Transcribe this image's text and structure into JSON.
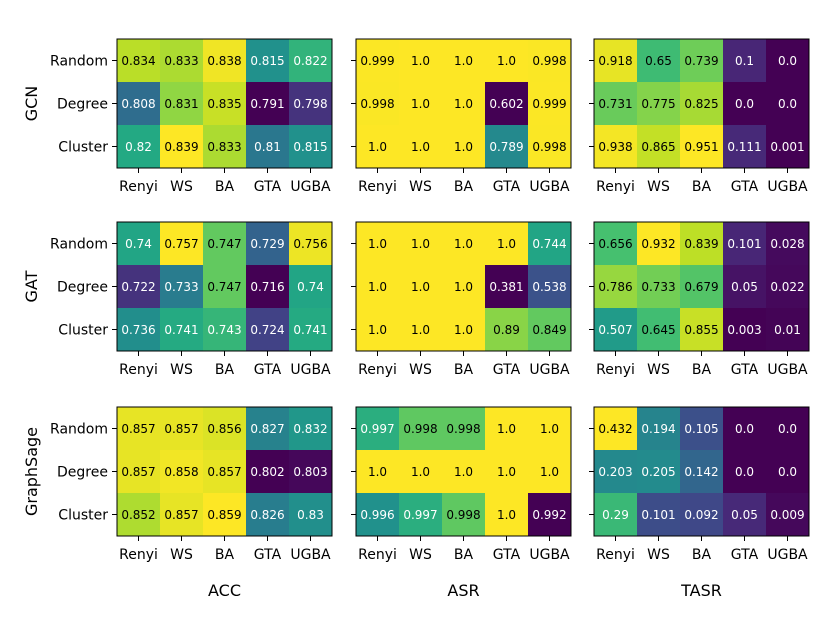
{
  "chart_data": {
    "type": "heatmap",
    "colormap": "viridis",
    "value_range": [
      0,
      1
    ],
    "row_titles": [
      "GCN",
      "GAT",
      "GraphSage"
    ],
    "col_titles": [
      "ACC",
      "ASR",
      "TASR"
    ],
    "x_ticks": [
      "Renyi",
      "WS",
      "BA",
      "GTA",
      "UGBA"
    ],
    "y_ticks": [
      "Random",
      "Degree",
      "Cluster"
    ],
    "panels": [
      {
        "model": "GCN",
        "metric": "ACC",
        "values": [
          [
            0.834,
            0.833,
            0.838,
            0.815,
            0.822
          ],
          [
            0.808,
            0.831,
            0.835,
            0.791,
            0.798
          ],
          [
            0.82,
            0.839,
            0.833,
            0.81,
            0.815
          ]
        ],
        "labels": [
          [
            "0.834",
            "0.833",
            "0.838",
            "0.815",
            "0.822"
          ],
          [
            "0.808",
            "0.831",
            "0.835",
            "0.791",
            "0.798"
          ],
          [
            "0.82",
            "0.839",
            "0.833",
            "0.81",
            "0.815"
          ]
        ]
      },
      {
        "model": "GCN",
        "metric": "ASR",
        "values": [
          [
            0.999,
            1.0,
            1.0,
            1.0,
            0.998
          ],
          [
            0.998,
            1.0,
            1.0,
            0.602,
            0.999
          ],
          [
            1.0,
            1.0,
            1.0,
            0.789,
            0.998
          ]
        ],
        "labels": [
          [
            "0.999",
            "1.0",
            "1.0",
            "1.0",
            "0.998"
          ],
          [
            "0.998",
            "1.0",
            "1.0",
            "0.602",
            "0.999"
          ],
          [
            "1.0",
            "1.0",
            "1.0",
            "0.789",
            "0.998"
          ]
        ]
      },
      {
        "model": "GCN",
        "metric": "TASR",
        "values": [
          [
            0.918,
            0.65,
            0.739,
            0.1,
            0.0
          ],
          [
            0.731,
            0.775,
            0.825,
            0.0,
            0.0
          ],
          [
            0.938,
            0.865,
            0.951,
            0.111,
            0.001
          ]
        ],
        "labels": [
          [
            "0.918",
            "0.65",
            "0.739",
            "0.1",
            "0.0"
          ],
          [
            "0.731",
            "0.775",
            "0.825",
            "0.0",
            "0.0"
          ],
          [
            "0.938",
            "0.865",
            "0.951",
            "0.111",
            "0.001"
          ]
        ]
      },
      {
        "model": "GAT",
        "metric": "ACC",
        "values": [
          [
            0.74,
            0.757,
            0.747,
            0.729,
            0.756
          ],
          [
            0.722,
            0.733,
            0.747,
            0.716,
            0.74
          ],
          [
            0.736,
            0.741,
            0.743,
            0.724,
            0.741
          ]
        ],
        "labels": [
          [
            "0.74",
            "0.757",
            "0.747",
            "0.729",
            "0.756"
          ],
          [
            "0.722",
            "0.733",
            "0.747",
            "0.716",
            "0.74"
          ],
          [
            "0.736",
            "0.741",
            "0.743",
            "0.724",
            "0.741"
          ]
        ]
      },
      {
        "model": "GAT",
        "metric": "ASR",
        "values": [
          [
            1.0,
            1.0,
            1.0,
            1.0,
            0.744
          ],
          [
            1.0,
            1.0,
            1.0,
            0.381,
            0.538
          ],
          [
            1.0,
            1.0,
            1.0,
            0.89,
            0.849
          ]
        ],
        "labels": [
          [
            "1.0",
            "1.0",
            "1.0",
            "1.0",
            "0.744"
          ],
          [
            "1.0",
            "1.0",
            "1.0",
            "0.381",
            "0.538"
          ],
          [
            "1.0",
            "1.0",
            "1.0",
            "0.89",
            "0.849"
          ]
        ]
      },
      {
        "model": "GAT",
        "metric": "TASR",
        "values": [
          [
            0.656,
            0.932,
            0.839,
            0.101,
            0.028
          ],
          [
            0.786,
            0.733,
            0.679,
            0.05,
            0.022
          ],
          [
            0.507,
            0.645,
            0.855,
            0.003,
            0.01
          ]
        ],
        "labels": [
          [
            "0.656",
            "0.932",
            "0.839",
            "0.101",
            "0.028"
          ],
          [
            "0.786",
            "0.733",
            "0.679",
            "0.05",
            "0.022"
          ],
          [
            "0.507",
            "0.645",
            "0.855",
            "0.003",
            "0.01"
          ]
        ]
      },
      {
        "model": "GraphSage",
        "metric": "ACC",
        "values": [
          [
            0.857,
            0.857,
            0.856,
            0.827,
            0.832
          ],
          [
            0.857,
            0.858,
            0.857,
            0.802,
            0.803
          ],
          [
            0.852,
            0.857,
            0.859,
            0.826,
            0.83
          ]
        ],
        "labels": [
          [
            "0.857",
            "0.857",
            "0.856",
            "0.827",
            "0.832"
          ],
          [
            "0.857",
            "0.858",
            "0.857",
            "0.802",
            "0.803"
          ],
          [
            "0.852",
            "0.857",
            "0.859",
            "0.826",
            "0.83"
          ]
        ]
      },
      {
        "model": "GraphSage",
        "metric": "ASR",
        "values": [
          [
            0.997,
            0.998,
            0.998,
            1.0,
            1.0
          ],
          [
            1.0,
            1.0,
            1.0,
            1.0,
            1.0
          ],
          [
            0.996,
            0.997,
            0.998,
            1.0,
            0.992
          ]
        ],
        "labels": [
          [
            "0.997",
            "0.998",
            "0.998",
            "1.0",
            "1.0"
          ],
          [
            "1.0",
            "1.0",
            "1.0",
            "1.0",
            "1.0"
          ],
          [
            "0.996",
            "0.997",
            "0.998",
            "1.0",
            "0.992"
          ]
        ]
      },
      {
        "model": "GraphSage",
        "metric": "TASR",
        "values": [
          [
            0.432,
            0.194,
            0.105,
            0.0,
            0.0
          ],
          [
            0.203,
            0.205,
            0.142,
            0.0,
            0.0
          ],
          [
            0.29,
            0.101,
            0.092,
            0.05,
            0.009
          ]
        ],
        "labels": [
          [
            "0.432",
            "0.194",
            "0.105",
            "0.0",
            "0.0"
          ],
          [
            "0.203",
            "0.205",
            "0.142",
            "0.0",
            "0.0"
          ],
          [
            "0.29",
            "0.101",
            "0.092",
            "0.05",
            "0.009"
          ]
        ]
      }
    ]
  }
}
